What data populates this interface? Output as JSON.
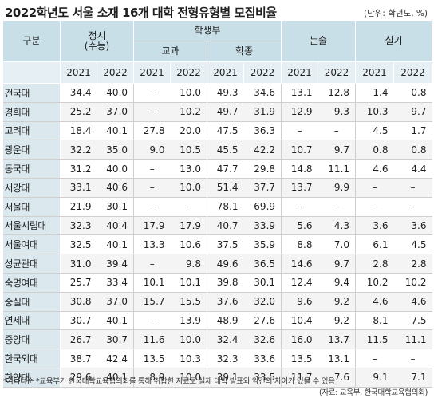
{
  "title": "2022학년도 서울 소재 16개 대학 전형유형별 모집비율",
  "unit": "(단위: 학년도, %)",
  "header": {
    "gubun": "구분",
    "jeongsi": "정시",
    "jeongsi_sub": "(수능)",
    "hakseng": "학생부",
    "gyogwa": "교과",
    "hakjong": "학종",
    "nonsul": "논술",
    "silgi": "실기",
    "years": [
      "2021",
      "2022"
    ]
  },
  "rows": [
    {
      "name": "건국대",
      "v": [
        "34.4",
        "40.0",
        "–",
        "10.0",
        "49.3",
        "34.6",
        "13.1",
        "12.8",
        "1.4",
        "0.8"
      ]
    },
    {
      "name": "경희대",
      "v": [
        "25.2",
        "37.0",
        "–",
        "10.2",
        "49.7",
        "31.9",
        "12.9",
        "9.3",
        "10.3",
        "9.7"
      ]
    },
    {
      "name": "고려대",
      "v": [
        "18.4",
        "40.1",
        "27.8",
        "20.0",
        "47.5",
        "36.3",
        "–",
        "–",
        "4.5",
        "1.7"
      ]
    },
    {
      "name": "광운대",
      "v": [
        "32.2",
        "35.0",
        "9.0",
        "10.5",
        "45.5",
        "42.2",
        "10.7",
        "9.7",
        "0.8",
        "0.8"
      ]
    },
    {
      "name": "동국대",
      "v": [
        "31.2",
        "40.0",
        "–",
        "13.0",
        "47.7",
        "29.8",
        "14.8",
        "11.1",
        "4.6",
        "4.4"
      ]
    },
    {
      "name": "서강대",
      "v": [
        "33.1",
        "40.6",
        "–",
        "10.0",
        "51.4",
        "37.7",
        "13.7",
        "9.9",
        "–",
        "–"
      ]
    },
    {
      "name": "서울대",
      "v": [
        "21.9",
        "30.1",
        "–",
        "–",
        "78.1",
        "69.9",
        "–",
        "–",
        "–",
        "–"
      ]
    },
    {
      "name": "서울시립대",
      "v": [
        "32.3",
        "40.4",
        "17.9",
        "17.9",
        "40.7",
        "33.9",
        "5.6",
        "4.3",
        "3.6",
        "3.6"
      ]
    },
    {
      "name": "서울여대",
      "v": [
        "32.5",
        "40.1",
        "13.3",
        "10.6",
        "37.5",
        "35.9",
        "8.8",
        "7.0",
        "6.1",
        "4.5"
      ]
    },
    {
      "name": "성균관대",
      "v": [
        "31.0",
        "39.4",
        "–",
        "9.8",
        "49.6",
        "36.5",
        "14.6",
        "9.7",
        "2.8",
        "2.8"
      ]
    },
    {
      "name": "숙명여대",
      "v": [
        "25.7",
        "33.4",
        "10.1",
        "10.1",
        "39.8",
        "30.1",
        "12.4",
        "9.4",
        "10.2",
        "10.2"
      ]
    },
    {
      "name": "숭실대",
      "v": [
        "30.8",
        "37.0",
        "15.7",
        "15.5",
        "37.6",
        "32.0",
        "9.6",
        "9.2",
        "4.6",
        "4.6"
      ]
    },
    {
      "name": "연세대",
      "v": [
        "30.7",
        "40.1",
        "–",
        "13.9",
        "48.9",
        "27.6",
        "10.4",
        "9.2",
        "8.1",
        "7.5"
      ]
    },
    {
      "name": "중앙대",
      "v": [
        "26.7",
        "30.7",
        "11.6",
        "10.0",
        "32.4",
        "32.6",
        "16.0",
        "13.7",
        "11.5",
        "11.1"
      ]
    },
    {
      "name": "한국외대",
      "v": [
        "38.7",
        "42.4",
        "13.5",
        "10.3",
        "32.3",
        "33.6",
        "13.5",
        "13.1",
        "–",
        "–"
      ]
    },
    {
      "name": "한양대",
      "v": [
        "29.6",
        "40.1",
        "8.9",
        "10.0",
        "39.1",
        "33.5",
        "11.7",
        "7.6",
        "9.1",
        "7.1"
      ]
    }
  ],
  "footnote": "*가나다순  *교육부가 한국대학교육협의회를 통해 취합한 자료로 실제 대학 발표와 약간의 차이가 있을 수 있음",
  "source": "(자료: 교육부, 한국대학교육협의회)"
}
